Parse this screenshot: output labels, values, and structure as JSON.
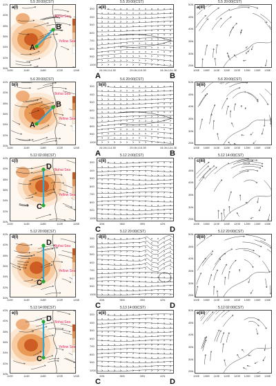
{
  "rows": [
    {
      "left": {
        "label": "a(i)",
        "time": "5.5 20:00(CST)",
        "p1": "A",
        "p2": "B",
        "sea1": "Bohai Sea",
        "sea2": "Yellow Sea",
        "xticks": [
          "110E",
          "114E",
          "118E",
          "122E",
          "126E"
        ],
        "yticks": [
          "42N",
          "40N",
          "38N",
          "36N",
          "34N",
          "32N",
          "30N"
        ]
      },
      "mid": {
        "label": "a(ii)",
        "time": "5.5 20:00(CST)",
        "s1": "A",
        "s2": "B",
        "xticks": [
          "24.0N,114.3E",
          "29.0N,119.3E",
          "34.0N,124.3E"
        ],
        "yticks": [
          "300",
          "400",
          "500",
          "600",
          "700",
          "800",
          "900",
          "1000"
        ]
      },
      "right": {
        "label": "a(iii)",
        "time": "5.5 20:00(CST)",
        "xticks": [
          "100E",
          "105E",
          "110E",
          "115E",
          "120E",
          "125E",
          "130E",
          "135E"
        ],
        "yticks": [
          "50N",
          "45N",
          "40N",
          "35N",
          "30N",
          "25N"
        ]
      }
    },
    {
      "left": {
        "label": "b(i)",
        "time": "5.6 20:00(CST)",
        "p1": "A",
        "p2": "B",
        "sea1": "Bohai Sea",
        "sea2": "Yellow Sea",
        "xticks": [
          "110E",
          "114E",
          "118E",
          "122E",
          "126E"
        ],
        "yticks": [
          "42N",
          "40N",
          "38N",
          "36N",
          "34N",
          "32N",
          "30N"
        ]
      },
      "mid": {
        "label": "b(ii)",
        "time": "5.6 20:00(CST)",
        "s1": "A",
        "s2": "B",
        "xticks": [
          "24.0N,114.3E",
          "29.0N,119.3E",
          "34.0N,124.3E"
        ],
        "yticks": [
          "300",
          "400",
          "500",
          "600",
          "700",
          "800",
          "900",
          "1000"
        ]
      },
      "right": {
        "label": "b(iii)",
        "time": "5.6 20:00(CST)",
        "xticks": [
          "100E",
          "105E",
          "110E",
          "115E",
          "120E",
          "125E",
          "130E",
          "135E"
        ],
        "yticks": [
          "50N",
          "45N",
          "40N",
          "35N",
          "30N",
          "25N"
        ]
      }
    },
    {
      "left": {
        "label": "c(i)",
        "time": "5.12 02:00(CST)",
        "p1": "C",
        "p2": "D",
        "sea1": "Bohai Sea",
        "sea2": "Yellow Sea",
        "xticks": [
          "110E",
          "114E",
          "118E",
          "122E",
          "126E"
        ],
        "yticks": [
          "42N",
          "40N",
          "38N",
          "36N",
          "34N",
          "32N",
          "30N"
        ]
      },
      "mid": {
        "label": "c(ii)",
        "time": "5.12 2:00(CST)",
        "s1": "C",
        "s2": "D",
        "xticks": [
          "33N",
          "36N",
          "39N",
          "42N"
        ],
        "yticks": [
          "300",
          "400",
          "500",
          "600",
          "700",
          "800",
          "900",
          "1000"
        ]
      },
      "right": {
        "label": "c(iii)",
        "time": "5.12 14:00(CST)",
        "xticks": [
          "100E",
          "105E",
          "110E",
          "115E",
          "120E",
          "125E",
          "130E",
          "135E"
        ],
        "yticks": [
          "50N",
          "45N",
          "40N",
          "35N",
          "30N",
          "25N"
        ]
      }
    },
    {
      "left": {
        "label": "d(i)",
        "time": "5.12 20:00(CST)",
        "p1": "C",
        "p2": "D",
        "sea1": "Bohai Sea",
        "sea2": "Yellow Sea",
        "xticks": [
          "110E",
          "114E",
          "118E",
          "122E",
          "126E"
        ],
        "yticks": [
          "42N",
          "40N",
          "38N",
          "36N",
          "34N",
          "32N",
          "30N"
        ]
      },
      "mid": {
        "label": "d(ii)",
        "time": "5.12 20:00(CST)",
        "s1": "C",
        "s2": "D",
        "xticks": [
          "33N",
          "36N",
          "39N",
          "42N"
        ],
        "yticks": [
          "300",
          "400",
          "500",
          "600",
          "700",
          "800",
          "900",
          "1000"
        ]
      },
      "right": {
        "label": "d(iii)",
        "time": "5.12 20:00(CST)",
        "xticks": [
          "100E",
          "105E",
          "110E",
          "115E",
          "120E",
          "125E",
          "130E",
          "135E"
        ],
        "yticks": [
          "50N",
          "45N",
          "40N",
          "35N",
          "30N",
          "25N"
        ]
      }
    },
    {
      "left": {
        "label": "e(i)",
        "time": "5.13 14:00(CST)",
        "p1": "C",
        "p2": "D",
        "sea1": "Bohai Sea",
        "sea2": "Yellow Sea",
        "xticks": [
          "110E",
          "114E",
          "118E",
          "122E",
          "126E"
        ],
        "yticks": [
          "42N",
          "40N",
          "38N",
          "36N",
          "34N",
          "32N",
          "30N"
        ]
      },
      "mid": {
        "label": "e(ii)",
        "time": "5.13 14:00(CST)",
        "s1": "C",
        "s2": "D",
        "xticks": [
          "33N",
          "36N",
          "39N",
          "42N"
        ],
        "yticks": [
          "300",
          "400",
          "500",
          "600",
          "700",
          "800",
          "900",
          "1000"
        ]
      },
      "right": {
        "label": "e(iii)",
        "time": "5.12 02:00(CST)",
        "xticks": [
          "100E",
          "105E",
          "110E",
          "115E",
          "120E",
          "125E",
          "130E",
          "135E"
        ],
        "yticks": [
          "50N",
          "45N",
          "40N",
          "35N",
          "30N",
          "25N"
        ]
      }
    }
  ],
  "colors": {
    "dust_dark": "#c8521a",
    "dust_mid": "#e8904a",
    "dust_light": "#f6c79a",
    "dust_pale": "#fbe6d0",
    "section_line": "#2aa8d8",
    "point_green": "#22aa33",
    "sea_label": "#e0245e",
    "stream": "#222222"
  }
}
